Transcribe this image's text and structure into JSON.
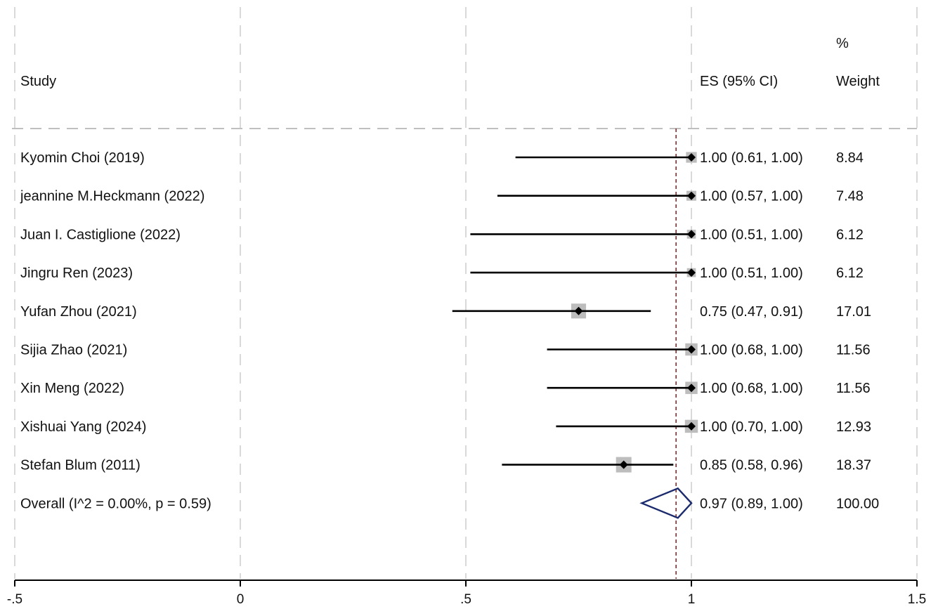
{
  "chart_data": {
    "type": "forest",
    "headers": {
      "study": "Study",
      "es": "ES (95% CI)",
      "weight_top": "%",
      "weight_bottom": "Weight"
    },
    "xlim": [
      -0.5,
      1.5
    ],
    "x_ticks": [
      {
        "value": -0.5,
        "label": "-.5"
      },
      {
        "value": 0,
        "label": "0"
      },
      {
        "value": 0.5,
        "label": ".5"
      },
      {
        "value": 1,
        "label": "1"
      },
      {
        "value": 1.5,
        "label": "1.5"
      }
    ],
    "reference_line": 0.966,
    "studies": [
      {
        "name": "Kyomin Choi (2019)",
        "es": 1.0,
        "lo": 0.61,
        "hi": 1.0,
        "es_text": "1.00 (0.61, 1.00)",
        "weight": 8.84,
        "weight_text": "8.84"
      },
      {
        "name": "jeannine M.Heckmann (2022)",
        "es": 1.0,
        "lo": 0.57,
        "hi": 1.0,
        "es_text": "1.00 (0.57, 1.00)",
        "weight": 7.48,
        "weight_text": "7.48"
      },
      {
        "name": "Juan I. Castiglione (2022)",
        "es": 1.0,
        "lo": 0.51,
        "hi": 1.0,
        "es_text": "1.00 (0.51, 1.00)",
        "weight": 6.12,
        "weight_text": "6.12"
      },
      {
        "name": "Jingru Ren (2023)",
        "es": 1.0,
        "lo": 0.51,
        "hi": 1.0,
        "es_text": "1.00 (0.51, 1.00)",
        "weight": 6.12,
        "weight_text": "6.12"
      },
      {
        "name": "Yufan Zhou  (2021)",
        "es": 0.75,
        "lo": 0.47,
        "hi": 0.91,
        "es_text": "0.75 (0.47, 0.91)",
        "weight": 17.01,
        "weight_text": "17.01"
      },
      {
        "name": "Sijia Zhao (2021)",
        "es": 1.0,
        "lo": 0.68,
        "hi": 1.0,
        "es_text": "1.00 (0.68, 1.00)",
        "weight": 11.56,
        "weight_text": "11.56"
      },
      {
        "name": "Xin Meng (2022)",
        "es": 1.0,
        "lo": 0.68,
        "hi": 1.0,
        "es_text": "1.00 (0.68, 1.00)",
        "weight": 11.56,
        "weight_text": "11.56"
      },
      {
        "name": "Xishuai Yang (2024)",
        "es": 1.0,
        "lo": 0.7,
        "hi": 1.0,
        "es_text": "1.00 (0.70, 1.00)",
        "weight": 12.93,
        "weight_text": "12.93"
      },
      {
        "name": "Stefan Blum  (2011)",
        "es": 0.85,
        "lo": 0.58,
        "hi": 0.96,
        "es_text": "0.85 (0.58, 0.96)",
        "weight": 18.37,
        "weight_text": "18.37"
      }
    ],
    "overall": {
      "name": "Overall  (I^2 = 0.00%, p = 0.59)",
      "es": 0.97,
      "lo": 0.89,
      "hi": 1.0,
      "es_text": "0.97 (0.89, 1.00)",
      "weight_text": "100.00"
    },
    "colors": {
      "text": "#111111",
      "ci_line": "#000000",
      "weight_box": "#bdbdbd",
      "point": "#000000",
      "diamond": "#1a2a6c",
      "reference_line": "#8b2a2a",
      "grid": "#d9d9d9"
    }
  }
}
